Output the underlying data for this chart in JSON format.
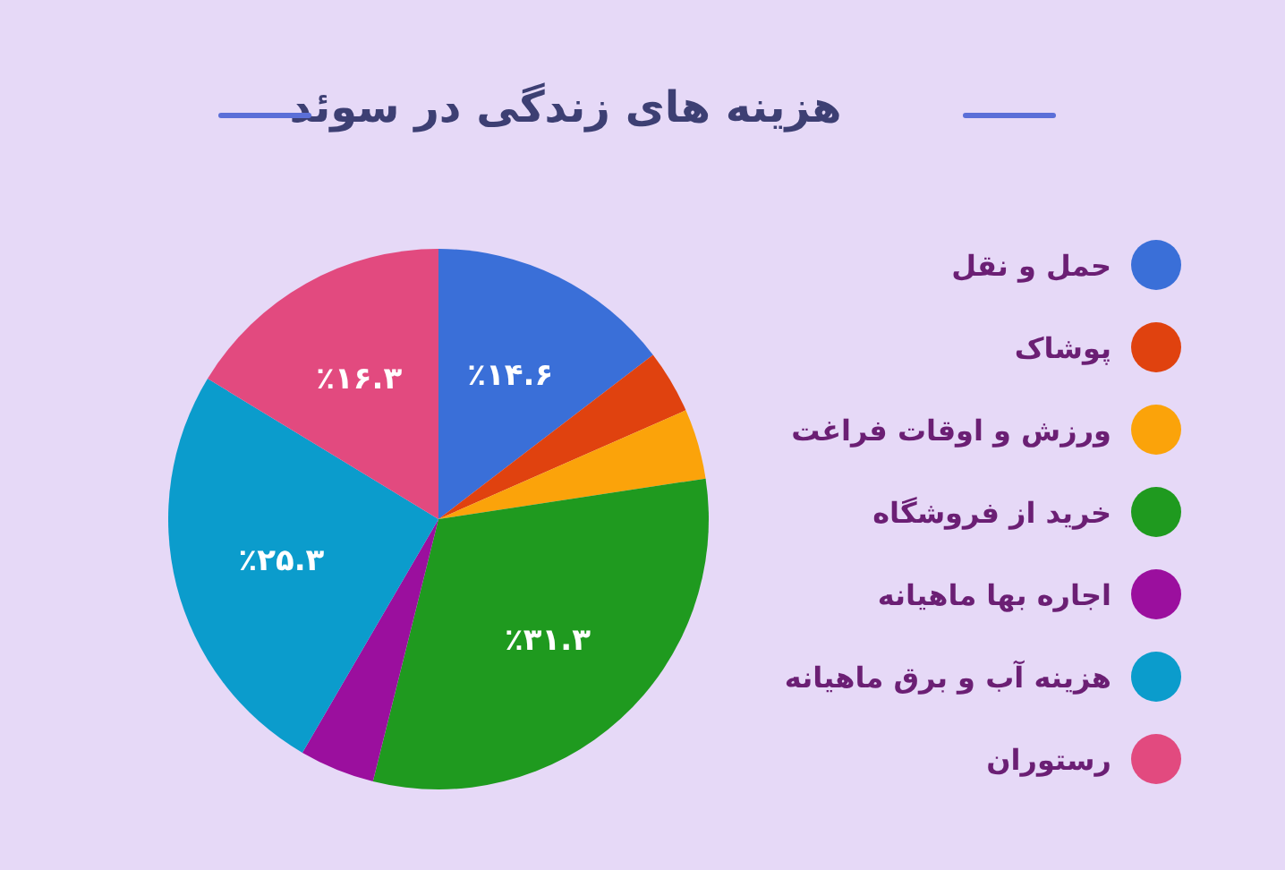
{
  "chart_data": {
    "type": "pie",
    "title": "هزینه های زندگی در سوئد",
    "categories": [
      "حمل و نقل",
      "پوشاک",
      "ورزش و اوقات فراغت",
      "خرید از فروشگاه",
      "اجاره بها ماهیانه",
      "هزینه آب و برق ماهیانه",
      "رستوران"
    ],
    "values": [
      14.6,
      3.8,
      4.2,
      31.3,
      4.5,
      25.3,
      16.3
    ],
    "colors": [
      "#3a6fd8",
      "#e0420f",
      "#fba30a",
      "#1f9a1f",
      "#9b0f9e",
      "#0b9ccc",
      "#e24a7f"
    ],
    "value_labels": [
      "٪۱۴.۶",
      null,
      null,
      "٪۳۱.۳",
      null,
      "٪۲۵.۳",
      "٪۱۶.۳"
    ],
    "legend": "right"
  }
}
